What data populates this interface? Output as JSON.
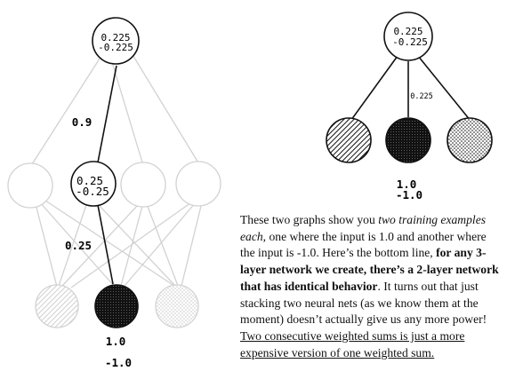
{
  "left_network": {
    "top_node": [
      "0.225",
      "-0.225"
    ],
    "hidden_node": [
      "0.25",
      "-0.25"
    ],
    "weight_top": "0.9",
    "weight_bottom": "0.25",
    "input_values": [
      "1.0",
      "-1.0"
    ]
  },
  "right_network": {
    "top_node": [
      "0.225",
      "-0.225"
    ],
    "weight": "0.225",
    "input_values": [
      "1.0",
      "-1.0"
    ]
  },
  "paragraph": {
    "p1": "These two graphs show you ",
    "p1_em": "two training examples each",
    "p2": ", one where the input is 1.0 and another where the input is -1.0. Here’s the bottom line, ",
    "p2_bold": "for any 3-layer network we create, there’s a 2-layer network that has identical behavior",
    "p3": ". It turns out that just stacking two neural nets (as we know them at the moment) doesn’t actually give us any more power! ",
    "p3_underline": "Two consecutive weighted sums is just a more expensive version of one weighted sum."
  },
  "colors": {
    "ink": "#111111",
    "faded": "#cfcfcf"
  },
  "icons": {
    "hatched_node": "diagonal-hatch-fill",
    "dark_node": "dense-crosshatch-fill",
    "dotted_node": "dot-stipple-fill"
  }
}
